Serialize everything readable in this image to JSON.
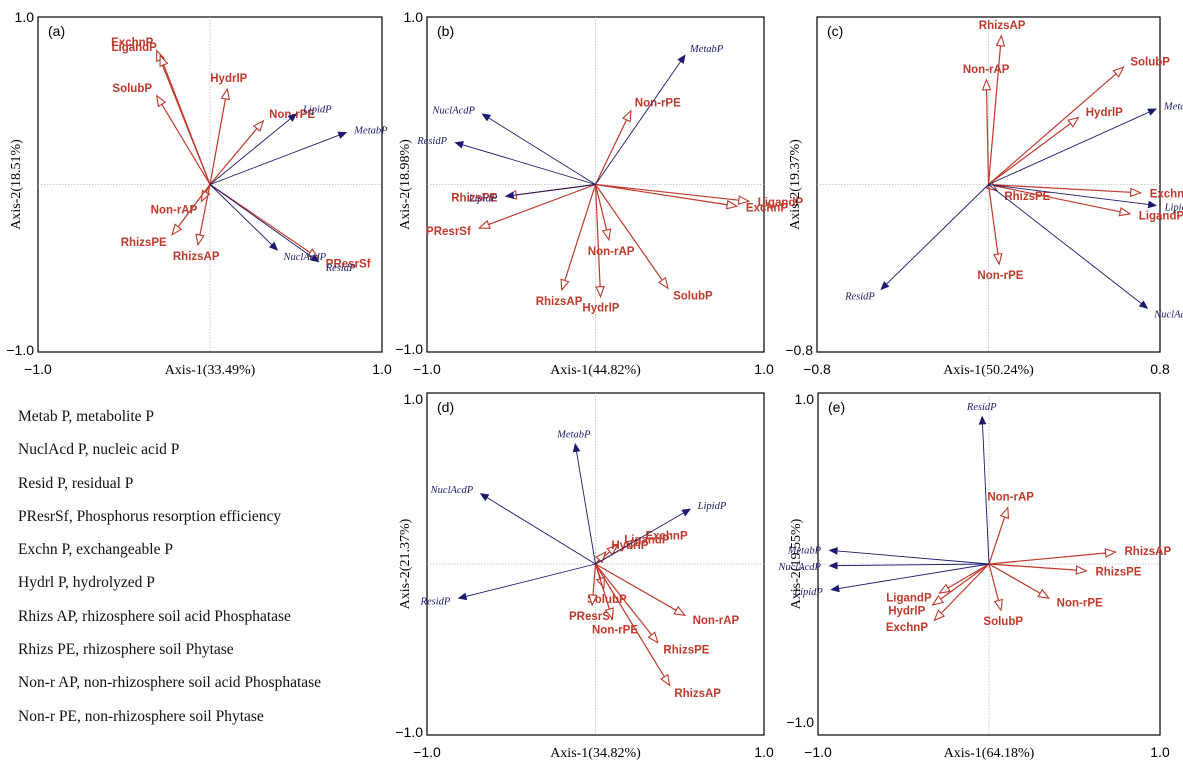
{
  "chart_data": [
    {
      "type": "biplot",
      "panel_label": "(a)",
      "xlabel": "Axis-1(33.49%)",
      "ylabel": "Axis-2(18.51%)",
      "xlim": [
        -1.0,
        1.0
      ],
      "ylim": [
        -1.0,
        1.0
      ],
      "x_ticks": [
        "−1.0",
        "1.0"
      ],
      "y_ticks": [
        "1.0",
        "−1.0"
      ],
      "vectors": [
        {
          "label": "ExchnP",
          "x": -0.31,
          "y": 0.8,
          "kind": "response"
        },
        {
          "label": "LigandP",
          "x": -0.29,
          "y": 0.77,
          "kind": "response"
        },
        {
          "label": "SolubP",
          "x": -0.31,
          "y": 0.53,
          "kind": "response"
        },
        {
          "label": "HydrlP",
          "x": 0.1,
          "y": 0.57,
          "kind": "response"
        },
        {
          "label": "Non-rPE",
          "x": 0.31,
          "y": 0.38,
          "kind": "response"
        },
        {
          "label": "Non-rAP",
          "x": -0.05,
          "y": -0.1,
          "kind": "response"
        },
        {
          "label": "RhizsPE",
          "x": -0.22,
          "y": -0.3,
          "kind": "response"
        },
        {
          "label": "RhizsAP",
          "x": -0.07,
          "y": -0.36,
          "kind": "response"
        },
        {
          "label": "PResrSf",
          "x": 0.63,
          "y": -0.44,
          "kind": "response"
        },
        {
          "label": "LipidP",
          "x": 0.5,
          "y": 0.42,
          "kind": "explanatory"
        },
        {
          "label": "MetabP",
          "x": 0.79,
          "y": 0.31,
          "kind": "explanatory"
        },
        {
          "label": "NuclAcdP",
          "x": 0.39,
          "y": -0.39,
          "kind": "explanatory"
        },
        {
          "label": "ResidP",
          "x": 0.63,
          "y": -0.46,
          "kind": "explanatory"
        }
      ]
    },
    {
      "type": "biplot",
      "panel_label": "(b)",
      "xlabel": "Axis-1(44.82%)",
      "ylabel": "Axis-2(18.98%)",
      "xlim": [
        -1.0,
        1.0
      ],
      "ylim": [
        -1.0,
        1.0
      ],
      "x_ticks": [
        "−1.0",
        "1.0"
      ],
      "y_ticks": [
        "1.0",
        "−1.0"
      ],
      "vectors": [
        {
          "label": "Non-rPE",
          "x": 0.21,
          "y": 0.44,
          "kind": "response"
        },
        {
          "label": "LigandP",
          "x": 0.91,
          "y": -0.1,
          "kind": "response"
        },
        {
          "label": "ExchnP",
          "x": 0.84,
          "y": -0.13,
          "kind": "response"
        },
        {
          "label": "RhizsPE",
          "x": -0.53,
          "y": -0.07,
          "kind": "response"
        },
        {
          "label": "PResrSf",
          "x": -0.69,
          "y": -0.26,
          "kind": "response"
        },
        {
          "label": "Non-rAP",
          "x": 0.08,
          "y": -0.33,
          "kind": "response"
        },
        {
          "label": "RhizsAP",
          "x": -0.2,
          "y": -0.63,
          "kind": "response"
        },
        {
          "label": "HydrlP",
          "x": 0.03,
          "y": -0.67,
          "kind": "response"
        },
        {
          "label": "SolubP",
          "x": 0.43,
          "y": -0.62,
          "kind": "response"
        },
        {
          "label": "MetabP",
          "x": 0.53,
          "y": 0.77,
          "kind": "explanatory"
        },
        {
          "label": "NuclAcdP",
          "x": -0.67,
          "y": 0.42,
          "kind": "explanatory"
        },
        {
          "label": "ResidP",
          "x": -0.83,
          "y": 0.25,
          "kind": "explanatory"
        },
        {
          "label": "LipidP",
          "x": -0.53,
          "y": -0.07,
          "kind": "explanatory"
        }
      ]
    },
    {
      "type": "biplot",
      "panel_label": "(c)",
      "xlabel": "Axis-1(50.24%)",
      "ylabel": "Axis-2(19.37%)",
      "xlim": [
        -0.8,
        0.8
      ],
      "ylim": [
        -0.8,
        0.8
      ],
      "x_ticks": [
        "−0.8",
        "0.8"
      ],
      "y_ticks": [
        "−0.8"
      ],
      "vectors": [
        {
          "label": "RhizsAP",
          "x": 0.06,
          "y": 0.71,
          "kind": "response"
        },
        {
          "label": "Non-rAP",
          "x": -0.01,
          "y": 0.5,
          "kind": "response"
        },
        {
          "label": "SolubP",
          "x": 0.63,
          "y": 0.56,
          "kind": "response"
        },
        {
          "label": "HydrlP",
          "x": 0.42,
          "y": 0.32,
          "kind": "response"
        },
        {
          "label": "ExchnP",
          "x": 0.71,
          "y": -0.04,
          "kind": "response"
        },
        {
          "label": "LigandP",
          "x": 0.66,
          "y": -0.14,
          "kind": "response"
        },
        {
          "label": "RhizsPE",
          "x": 0.04,
          "y": -0.03,
          "kind": "response"
        },
        {
          "label": "Non-rPE",
          "x": 0.05,
          "y": -0.38,
          "kind": "response"
        },
        {
          "label": "MetabP",
          "x": 0.78,
          "y": 0.36,
          "kind": "explanatory"
        },
        {
          "label": "LipidP",
          "x": 0.78,
          "y": -0.1,
          "kind": "explanatory"
        },
        {
          "label": "ResidP",
          "x": -0.5,
          "y": -0.5,
          "kind": "explanatory"
        },
        {
          "label": "NuclAcdP",
          "x": 0.74,
          "y": -0.59,
          "kind": "explanatory"
        }
      ]
    },
    {
      "type": "biplot",
      "panel_label": "(d)",
      "xlabel": "Axis-1(34.82%)",
      "ylabel": "Axis-2(21.37%)",
      "xlim": [
        -1.0,
        1.0
      ],
      "ylim": [
        -1.0,
        1.0
      ],
      "x_ticks": [
        "−1.0",
        "1.0"
      ],
      "y_ticks": [
        "1.0",
        "−1.0"
      ],
      "vectors": [
        {
          "label": "LigandP",
          "x": 0.13,
          "y": 0.11,
          "kind": "response"
        },
        {
          "label": "ExchnP",
          "x": 0.25,
          "y": 0.14,
          "kind": "response"
        },
        {
          "label": "HydrlP",
          "x": 0.06,
          "y": 0.07,
          "kind": "response"
        },
        {
          "label": "SolubP",
          "x": 0.05,
          "y": -0.14,
          "kind": "response"
        },
        {
          "label": "PResrSf",
          "x": -0.02,
          "y": -0.24,
          "kind": "response"
        },
        {
          "label": "Non-rPE",
          "x": 0.1,
          "y": -0.32,
          "kind": "response"
        },
        {
          "label": "Non-rAP",
          "x": 0.53,
          "y": -0.3,
          "kind": "response"
        },
        {
          "label": "RhizsPE",
          "x": 0.37,
          "y": -0.46,
          "kind": "response"
        },
        {
          "label": "RhizsAP",
          "x": 0.44,
          "y": -0.71,
          "kind": "response"
        },
        {
          "label": "MetabP",
          "x": -0.12,
          "y": 0.7,
          "kind": "explanatory"
        },
        {
          "label": "NuclAcdP",
          "x": -0.68,
          "y": 0.41,
          "kind": "explanatory"
        },
        {
          "label": "LipidP",
          "x": 0.56,
          "y": 0.32,
          "kind": "explanatory"
        },
        {
          "label": "ResidP",
          "x": -0.81,
          "y": -0.2,
          "kind": "explanatory"
        }
      ]
    },
    {
      "type": "biplot",
      "panel_label": "(e)",
      "xlabel": "Axis-1(64.18%)",
      "ylabel": "Axis-2(19.55%)",
      "xlim": [
        -1.0,
        1.0
      ],
      "ylim": [
        -1.0,
        1.0
      ],
      "x_ticks": [
        "−1.0",
        "1.0"
      ],
      "y_ticks": [
        "1.0",
        "−1.0"
      ],
      "vectors": [
        {
          "label": "Non-rAP",
          "x": 0.11,
          "y": 0.33,
          "kind": "response"
        },
        {
          "label": "RhizsAP",
          "x": 0.74,
          "y": 0.07,
          "kind": "response"
        },
        {
          "label": "RhizsPE",
          "x": 0.57,
          "y": -0.04,
          "kind": "response"
        },
        {
          "label": "Non-rPE",
          "x": 0.35,
          "y": -0.2,
          "kind": "response"
        },
        {
          "label": "SolubP",
          "x": 0.07,
          "y": -0.27,
          "kind": "response"
        },
        {
          "label": "LigandP",
          "x": -0.29,
          "y": -0.17,
          "kind": "response"
        },
        {
          "label": "HydrlP",
          "x": -0.33,
          "y": -0.24,
          "kind": "response"
        },
        {
          "label": "ExchnP",
          "x": -0.32,
          "y": -0.33,
          "kind": "response"
        },
        {
          "label": "ResidP",
          "x": -0.04,
          "y": 0.86,
          "kind": "explanatory"
        },
        {
          "label": "MetabP",
          "x": -0.93,
          "y": 0.08,
          "kind": "explanatory"
        },
        {
          "label": "NuclAcdP",
          "x": -0.93,
          "y": -0.01,
          "kind": "explanatory"
        },
        {
          "label": "LipidP",
          "x": -0.92,
          "y": -0.15,
          "kind": "explanatory"
        }
      ]
    }
  ],
  "legend": [
    "Metab P, metabolite P",
    "NuclAcd P, nucleic acid P",
    "Resid P, residual P",
    "PResrSf, Phosphorus resorption efficiency",
    "Exchn P, exchangeable P",
    "Hydrl P, hydrolyzed P",
    "Rhizs AP, rhizosphere soil acid Phosphatase",
    "Rhizs PE, rhizosphere soil Phytase",
    "Non-r AP, non-rhizosphere soil acid Phosphatase",
    "Non-r PE, non-rhizosphere soil Phytase"
  ],
  "colors": {
    "response": "#c0392b",
    "explanatory": "#1a1a6e",
    "axis": "#000000",
    "reference_line": "#bbbbbb"
  }
}
